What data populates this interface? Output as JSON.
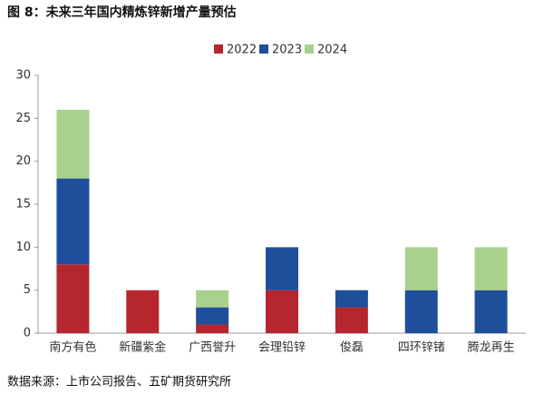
{
  "chart_data": {
    "type": "stacked_bar",
    "title": "图 8：未来三年国内精炼锌新增产量预估",
    "source": "数据来源：上市公司报告、五矿期货研究所",
    "categories": [
      "南方有色",
      "新疆紫金",
      "广西誉升",
      "会理铅锌",
      "俊磊",
      "四环锌锗",
      "腾龙再生"
    ],
    "series": [
      {
        "name": "2022",
        "color": "#b5262e",
        "values": [
          8,
          5,
          1,
          5,
          3,
          0,
          0
        ]
      },
      {
        "name": "2023",
        "color": "#1f4e9a",
        "values": [
          10,
          0,
          2,
          5,
          2,
          5,
          5
        ]
      },
      {
        "name": "2024",
        "color": "#a9d18e",
        "values": [
          8,
          0,
          2,
          0,
          0,
          5,
          5
        ]
      }
    ],
    "ylim": [
      0,
      30
    ],
    "yticks": [
      0,
      5,
      10,
      15,
      20,
      25,
      30
    ],
    "grid": false,
    "legend": "top"
  }
}
